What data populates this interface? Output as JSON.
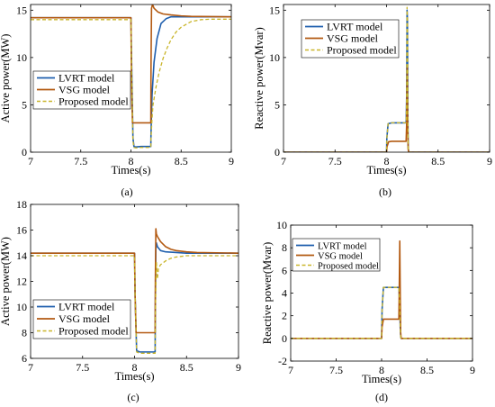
{
  "colors": {
    "lvrt": "#1f5fae",
    "vsg": "#b35a12",
    "proposed": "#c9b52a",
    "spike": "#e2332b"
  },
  "chart_data": [
    {
      "id": "a",
      "caption": "(a)",
      "type": "line",
      "xlabel": "Times(s)",
      "ylabel": "Active power(MW)",
      "xlim": [
        7,
        9
      ],
      "ylim": [
        0,
        15.6
      ],
      "xticks": [
        7,
        7.5,
        8,
        8.5,
        9
      ],
      "yticks": [
        0,
        5,
        10,
        15
      ],
      "xtick_labels": [
        "7",
        "7.5",
        "8",
        "8.5",
        "9"
      ],
      "ytick_labels": [
        "0",
        "5",
        "10",
        "15"
      ],
      "legend_position": "lower-left",
      "series": [
        {
          "name": "LVRT model",
          "style": "solid",
          "x": [
            7,
            8.0,
            8.005,
            8.02,
            8.03,
            8.05,
            8.1,
            8.15,
            8.198,
            8.2,
            8.21,
            8.23,
            8.26,
            8.3,
            8.35,
            8.4,
            8.5,
            9
          ],
          "y": [
            14.2,
            14.2,
            10.5,
            1.5,
            0.6,
            0.55,
            0.6,
            0.6,
            0.6,
            2.0,
            6.0,
            9.5,
            12.0,
            13.6,
            14.1,
            14.3,
            14.3,
            14.3
          ]
        },
        {
          "name": "VSG model",
          "style": "solid",
          "x": [
            7,
            8.0,
            8.005,
            8.015,
            8.05,
            8.1,
            8.15,
            8.198,
            8.2,
            8.205,
            8.215,
            8.23,
            8.27,
            8.32,
            8.4,
            8.5,
            8.6,
            9
          ],
          "y": [
            14.2,
            14.2,
            8.0,
            3.1,
            3.1,
            3.1,
            3.1,
            3.1,
            9.0,
            15.2,
            15.6,
            15.2,
            14.8,
            14.6,
            14.5,
            14.4,
            14.35,
            14.3
          ]
        },
        {
          "name": "Proposed model",
          "style": "dashed",
          "x": [
            7,
            8.0,
            8.005,
            8.02,
            8.03,
            8.05,
            8.1,
            8.15,
            8.198,
            8.2,
            8.21,
            8.22,
            8.25,
            8.28,
            8.32,
            8.36,
            8.4,
            8.45,
            8.5,
            8.6,
            8.7,
            8.8,
            9
          ],
          "y": [
            14.0,
            14.0,
            10.0,
            1.2,
            0.5,
            0.45,
            0.5,
            0.5,
            0.5,
            1.5,
            3.5,
            5.0,
            6.9,
            8.4,
            9.9,
            11.0,
            11.9,
            12.7,
            13.2,
            13.8,
            14.0,
            14.05,
            14.05
          ]
        }
      ]
    },
    {
      "id": "b",
      "caption": "(b)",
      "type": "line",
      "xlabel": "Times(s)",
      "ylabel": "Reactive power(Mvar)",
      "xlim": [
        7,
        9
      ],
      "ylim": [
        0,
        15.6
      ],
      "xticks": [
        7,
        7.5,
        8,
        8.5,
        9
      ],
      "yticks": [
        0,
        5,
        10,
        15
      ],
      "xtick_labels": [
        "7",
        "7.5",
        "8",
        "8.5",
        "9"
      ],
      "ytick_labels": [
        "0",
        "5",
        "10",
        "15"
      ],
      "legend_position": "top-right",
      "series": [
        {
          "name": "LVRT model",
          "style": "solid",
          "x": [
            7,
            8.0,
            8.003,
            8.015,
            8.05,
            8.1,
            8.15,
            8.19,
            8.195,
            8.199,
            8.203,
            8.207,
            8.21,
            8.215,
            9
          ],
          "y": [
            0,
            0,
            1.5,
            3.0,
            3.1,
            3.1,
            3.1,
            3.1,
            6.0,
            15.0,
            14.0,
            4.0,
            0.5,
            0,
            0
          ]
        },
        {
          "name": "VSG model",
          "style": "solid",
          "x": [
            7,
            8.0,
            8.005,
            8.02,
            8.05,
            8.1,
            8.15,
            8.19,
            8.195,
            8.2,
            8.205,
            8.21,
            8.215,
            9
          ],
          "y": [
            0,
            0,
            0.6,
            1.1,
            1.15,
            1.15,
            1.15,
            1.15,
            3.0,
            9.0,
            3.0,
            0.3,
            0,
            0
          ]
        },
        {
          "name": "Proposed model",
          "style": "dashed",
          "x": [
            7,
            8.0,
            8.003,
            8.015,
            8.05,
            8.1,
            8.15,
            8.19,
            8.195,
            8.199,
            8.203,
            8.207,
            8.21,
            8.215,
            9
          ],
          "y": [
            0,
            0,
            1.5,
            3.0,
            3.1,
            3.1,
            3.1,
            3.1,
            6.0,
            15.3,
            14.0,
            4.0,
            0.5,
            0,
            0
          ]
        }
      ]
    },
    {
      "id": "c",
      "caption": "(c)",
      "type": "line",
      "xlabel": "Times(s)",
      "ylabel": "Active power(MW)",
      "xlim": [
        7,
        9
      ],
      "ylim": [
        6,
        18
      ],
      "xticks": [
        7,
        7.5,
        8,
        8.5,
        9
      ],
      "yticks": [
        6,
        8,
        10,
        12,
        14,
        16,
        18
      ],
      "xtick_labels": [
        "7",
        "7.5",
        "8",
        "8.5",
        "9"
      ],
      "ytick_labels": [
        "6",
        "8",
        "10",
        "12",
        "14",
        "16",
        "18"
      ],
      "legend_position": "lower-left",
      "series": [
        {
          "name": "LVRT model",
          "style": "solid",
          "x": [
            7,
            8.0,
            8.005,
            8.02,
            8.05,
            8.1,
            8.15,
            8.198,
            8.2,
            8.205,
            8.21,
            8.22,
            8.25,
            8.3,
            8.4,
            8.5,
            9
          ],
          "y": [
            14.2,
            14.2,
            11.0,
            6.6,
            6.5,
            6.5,
            6.5,
            6.5,
            10.0,
            14.5,
            15.0,
            14.7,
            14.4,
            14.3,
            14.25,
            14.2,
            14.2
          ]
        },
        {
          "name": "VSG model",
          "style": "solid",
          "x": [
            7,
            8.0,
            8.005,
            8.015,
            8.05,
            8.1,
            8.15,
            8.198,
            8.2,
            8.205,
            8.21,
            8.22,
            8.25,
            8.3,
            8.35,
            8.4,
            8.5,
            8.6,
            9
          ],
          "y": [
            14.2,
            14.2,
            11.0,
            8.0,
            8.0,
            8.0,
            8.0,
            8.0,
            12.0,
            16.1,
            15.7,
            15.5,
            15.1,
            14.7,
            14.5,
            14.4,
            14.3,
            14.25,
            14.2
          ]
        },
        {
          "name": "Proposed model",
          "style": "dashed",
          "x": [
            7,
            8.0,
            8.005,
            8.02,
            8.05,
            8.1,
            8.15,
            8.198,
            8.2,
            8.21,
            8.22,
            8.23,
            8.25,
            8.3,
            8.35,
            8.4,
            8.5,
            8.6,
            9
          ],
          "y": [
            14.0,
            14.0,
            11.0,
            6.5,
            6.4,
            6.4,
            6.4,
            6.4,
            9.5,
            13.5,
            12.2,
            13.0,
            13.3,
            13.6,
            13.8,
            13.9,
            14.0,
            14.0,
            14.0
          ]
        }
      ]
    },
    {
      "id": "d",
      "caption": "(d)",
      "type": "line",
      "xlabel": "Times(s)",
      "ylabel": "Reactive power(Mvar)",
      "xlim": [
        7,
        9
      ],
      "ylim": [
        -2,
        10
      ],
      "xticks": [
        7,
        7.5,
        8,
        8.5,
        9
      ],
      "yticks": [
        -2,
        0,
        2,
        4,
        6,
        8,
        10
      ],
      "xtick_labels": [
        "7",
        "7.5",
        "8",
        "8.5",
        "9"
      ],
      "ytick_labels": [
        "-2",
        "0",
        "2",
        "4",
        "6",
        "8",
        "10"
      ],
      "legend_position": "top-left",
      "series": [
        {
          "name": "LVRT model",
          "style": "solid",
          "x": [
            7,
            8.0,
            8.005,
            8.02,
            8.05,
            8.1,
            8.15,
            8.19,
            8.2,
            8.205,
            8.21,
            8.215,
            9
          ],
          "y": [
            0,
            0,
            2.5,
            4.5,
            4.5,
            4.5,
            4.5,
            4.5,
            3.0,
            1.0,
            0.2,
            0,
            0
          ]
        },
        {
          "name": "VSG model",
          "style": "solid",
          "x": [
            7,
            8.0,
            8.005,
            8.02,
            8.05,
            8.1,
            8.15,
            8.19,
            8.195,
            8.2,
            8.205,
            8.21,
            8.215,
            9
          ],
          "y": [
            0,
            0,
            1.0,
            1.7,
            1.7,
            1.7,
            1.7,
            1.7,
            5.0,
            8.6,
            4.0,
            0.5,
            0,
            0
          ]
        },
        {
          "name": "Proposed model",
          "style": "dashed",
          "x": [
            7,
            8.0,
            8.005,
            8.02,
            8.05,
            8.1,
            8.15,
            8.19,
            8.2,
            8.205,
            8.21,
            8.215,
            9
          ],
          "y": [
            0,
            0,
            2.5,
            4.5,
            4.5,
            4.5,
            4.5,
            4.5,
            3.0,
            1.0,
            0.2,
            0,
            0
          ]
        }
      ]
    }
  ]
}
